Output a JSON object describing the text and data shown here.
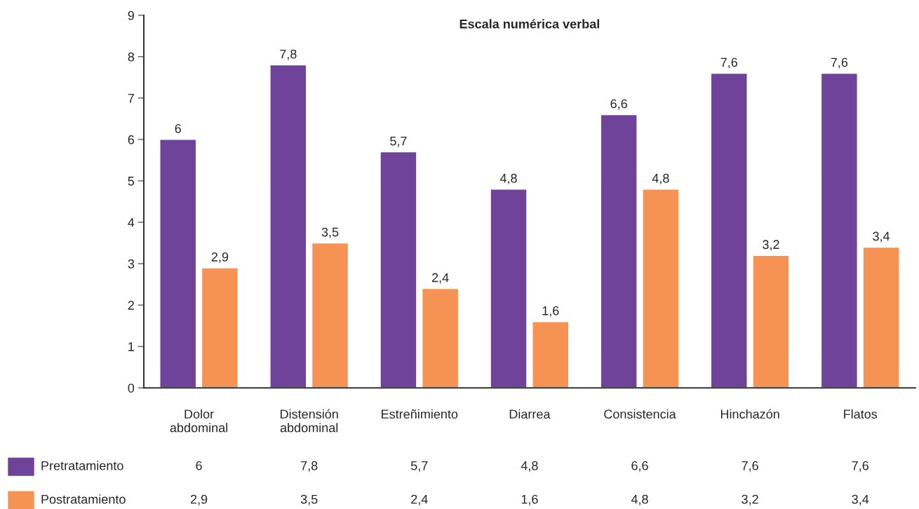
{
  "chart_data": {
    "type": "bar",
    "title": "Escala numérica verbal",
    "categories": [
      "Dolor\nabdominal",
      "Distensión\nabdominal",
      "Estreñimiento",
      "Diarrea",
      "Consistencia",
      "Hinchazón",
      "Flatos"
    ],
    "series": [
      {
        "name": "Pretratamiento",
        "color": "#6f4399",
        "values": [
          6,
          7.8,
          5.7,
          4.8,
          6.6,
          7.6,
          7.6
        ],
        "value_labels": [
          "6",
          "7,8",
          "5,7",
          "4,8",
          "6,6",
          "7,6",
          "7,6"
        ]
      },
      {
        "name": "Postratamiento",
        "color": "#f59254",
        "values": [
          2.9,
          3.5,
          2.4,
          1.6,
          4.8,
          3.2,
          3.4
        ],
        "value_labels": [
          "2,9",
          "3,5",
          "2,4",
          "1,6",
          "4,8",
          "3,2",
          "3,4"
        ]
      }
    ],
    "ylim": [
      0,
      9
    ],
    "yticks": [
      0,
      1,
      2,
      3,
      4,
      5,
      6,
      7,
      8,
      9
    ],
    "grid": false,
    "legend": "bottom"
  }
}
